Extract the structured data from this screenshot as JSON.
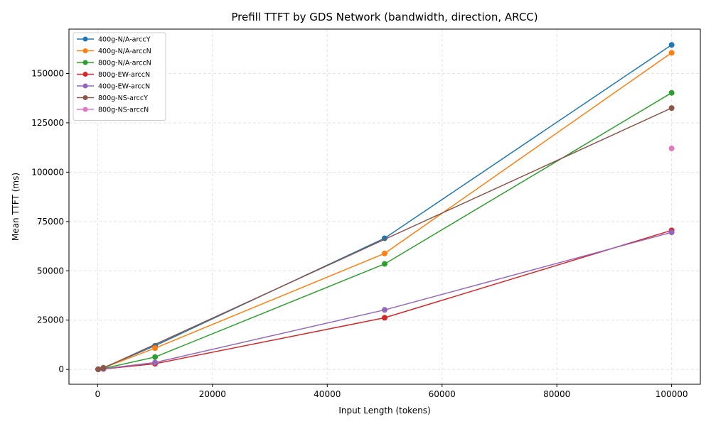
{
  "chart_data": {
    "type": "line",
    "title": "Prefill TTFT by GDS Network (bandwidth, direction, ARCC)",
    "xlabel": "Input Length (tokens)",
    "ylabel": "Mean TTFT (ms)",
    "xlim": [
      -5000,
      105000
    ],
    "ylim": [
      -7500,
      172500
    ],
    "xticks": [
      0,
      20000,
      40000,
      60000,
      80000,
      100000
    ],
    "yticks": [
      0,
      25000,
      50000,
      75000,
      100000,
      125000,
      150000
    ],
    "grid": true,
    "legend_position": "top-left",
    "series": [
      {
        "name": "400g-N/A-arccY",
        "color": "#1f77b4",
        "x": [
          100,
          1000,
          10000,
          50000,
          100000
        ],
        "y": [
          150,
          900,
          12000,
          66500,
          164500
        ]
      },
      {
        "name": "400g-N/A-arccN",
        "color": "#ff7f0e",
        "x": [
          100,
          1000,
          10000,
          50000,
          100000
        ],
        "y": [
          120,
          800,
          10800,
          58800,
          160500
        ]
      },
      {
        "name": "800g-N/A-arccN",
        "color": "#2ca02c",
        "x": [
          100,
          1000,
          10000,
          50000,
          100000
        ],
        "y": [
          100,
          500,
          6300,
          53500,
          140200
        ]
      },
      {
        "name": "800g-EW-arccN",
        "color": "#d62728",
        "x": [
          100,
          1000,
          10000,
          50000,
          100000
        ],
        "y": [
          60,
          250,
          2900,
          26200,
          70500
        ]
      },
      {
        "name": "400g-EW-arccN",
        "color": "#9467bd",
        "x": [
          100,
          1000,
          10000,
          50000,
          100000
        ],
        "y": [
          70,
          300,
          3500,
          30200,
          69500
        ]
      },
      {
        "name": "800g-NS-arccY",
        "color": "#8c564b",
        "x": [
          100,
          1000,
          100000
        ],
        "y": [
          100,
          700,
          132500
        ]
      },
      {
        "name": "800g-NS-arccN",
        "color": "#e377c2",
        "x": [
          100000
        ],
        "y": [
          112000
        ]
      }
    ]
  }
}
